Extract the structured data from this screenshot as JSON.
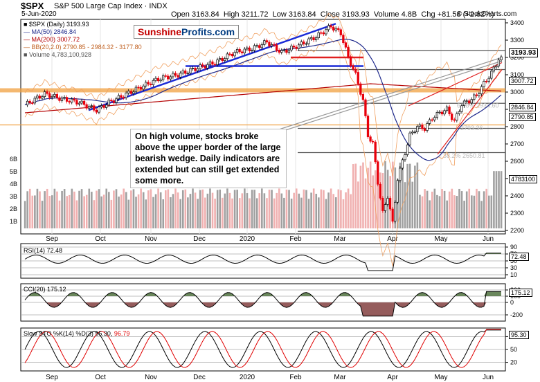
{
  "header": {
    "symbol": "$SPX",
    "description": "S&P 500 Large Cap Index",
    "exchange": "INDX",
    "date": "5-Jun-2020",
    "open_label": "Open",
    "open": "3163.84",
    "high_label": "High",
    "high": "3211.72",
    "low_label": "Low",
    "low": "3163.84",
    "close_label": "Close",
    "close": "3193.93",
    "volume_label": "Volume",
    "volume": "4.8B",
    "chg_label": "Chg",
    "chg": "+81.58 (+2.62%)",
    "watermark": "© StockCharts.com"
  },
  "logo": {
    "part1": "Sunshine",
    "part2": "Profits.com"
  },
  "annotation": "On high volume, stocks broke above the upper border of the large bearish wedge. Daily indicators are extended but can still get extended some more.",
  "legend": {
    "price": "$SPX (Daily) 3193.93",
    "ma50": "MA(50) 2846.84",
    "ma200": "MA(200) 3007.72",
    "bb": "BB(20,2.0) 2790.85 - 2984.32 - 3177.80",
    "volume": "Volume 4,783,100,928"
  },
  "panels": {
    "rsi_label": "RSI(14) 72.48",
    "cci_label": "CCI(20) 175.12",
    "sto_label": "Slow STO %K(14) %D(3) 95.30, 96.79",
    "sto_part1": "Slow STO %K(14) %D(3) 95.30,",
    "sto_part2": "96.79",
    "rsi_badge": "72.48",
    "cci_badge": "175.12",
    "sto_badge": "95.30"
  },
  "badges": {
    "close": "3193.93",
    "ma200": "3007.72",
    "ma50": "2846.84",
    "bb_lower": "2790.85",
    "volume": "4783100"
  },
  "fib_labels": [
    "38.2% 2650.81",
    "2793.36",
    "61.8% 2934.60"
  ],
  "colors": {
    "up": "#000000",
    "down": "#e8000b",
    "ma50": "#1f2a8c",
    "ma200": "#b40000",
    "bb": "#f0a060",
    "volume_up": "#a0a0a0",
    "volume_down": "#f0b0b0",
    "trend_blue": "#1a2ad6",
    "trend_red": "#e02020",
    "orange_band": "#f0a040",
    "rsi_pos": "#5a7a4a",
    "cci_pos": "#5a7a4a",
    "cci_neg": "#8a4a4a",
    "sto_k": "#000000",
    "sto_d": "#e00000"
  },
  "chart_data": [
    {
      "type": "candlestick",
      "title": "$SPX S&P 500 Large Cap Index",
      "period": "Daily",
      "x_labels": [
        "Sep",
        "Oct",
        "Nov",
        "Dec",
        "2020",
        "Feb",
        "Mar",
        "Apr",
        "May",
        "Jun"
      ],
      "y_ticks": [
        2200,
        2300,
        2400,
        2500,
        2600,
        2700,
        2800,
        2900,
        3000,
        3100,
        3200,
        3300,
        3400
      ],
      "ylim": [
        2180,
        3420
      ],
      "volume_ticks": [
        "1B",
        "2B",
        "3B",
        "4B",
        "5B",
        "6B"
      ],
      "series": [
        {
          "name": "$SPX",
          "close_points": [
            [
              0,
              2925
            ],
            [
              8,
              2990
            ],
            [
              15,
              2960
            ],
            [
              22,
              2940
            ],
            [
              29,
              2895
            ],
            [
              34,
              2940
            ],
            [
              40,
              2980
            ],
            [
              47,
              3030
            ],
            [
              55,
              3080
            ],
            [
              62,
              3100
            ],
            [
              70,
              3140
            ],
            [
              77,
              3170
            ],
            [
              85,
              3230
            ],
            [
              92,
              3250
            ],
            [
              98,
              3290
            ],
            [
              104,
              3230
            ],
            [
              111,
              3270
            ],
            [
              118,
              3320
            ],
            [
              124,
              3380
            ],
            [
              128,
              3340
            ],
            [
              131,
              3200
            ],
            [
              134,
              3100
            ],
            [
              137,
              2950
            ],
            [
              139,
              2750
            ],
            [
              141,
              2700
            ],
            [
              143,
              2480
            ],
            [
              145,
              2300
            ],
            [
              147,
              2400
            ],
            [
              149,
              2240
            ],
            [
              151,
              2500
            ],
            [
              153,
              2600
            ],
            [
              156,
              2750
            ],
            [
              159,
              2800
            ],
            [
              162,
              2790
            ],
            [
              165,
              2850
            ],
            [
              168,
              2880
            ],
            [
              171,
              2900
            ],
            [
              174,
              2830
            ],
            [
              177,
              2930
            ],
            [
              180,
              2950
            ],
            [
              183,
              2980
            ],
            [
              186,
              3050
            ],
            [
              189,
              3110
            ],
            [
              192,
              3190
            ]
          ]
        },
        {
          "name": "MA(50)",
          "value": 2846.84
        },
        {
          "name": "MA(200)",
          "value": 3007.72
        },
        {
          "name": "BB(20,2.0)",
          "lower": 2790.85,
          "middle": 2984.32,
          "upper": 3177.8
        }
      ],
      "last": {
        "open": 3163.84,
        "high": 3211.72,
        "low": 3163.84,
        "close": 3193.93,
        "volume": 4783100928
      }
    },
    {
      "type": "line",
      "title": "RSI(14)",
      "value": 72.48,
      "y_ticks": [
        10,
        30,
        50,
        70,
        90
      ],
      "ylim": [
        0,
        100
      ]
    },
    {
      "type": "line",
      "title": "CCI(20)",
      "value": 175.12,
      "y_ticks": [
        -200,
        0,
        100,
        200
      ],
      "ylim": [
        -300,
        300
      ]
    },
    {
      "type": "line",
      "title": "Slow STO %K(14) %D(3)",
      "k": 95.3,
      "d": 96.79,
      "y_ticks": [
        20,
        50,
        80
      ],
      "ylim": [
        0,
        100
      ]
    }
  ]
}
